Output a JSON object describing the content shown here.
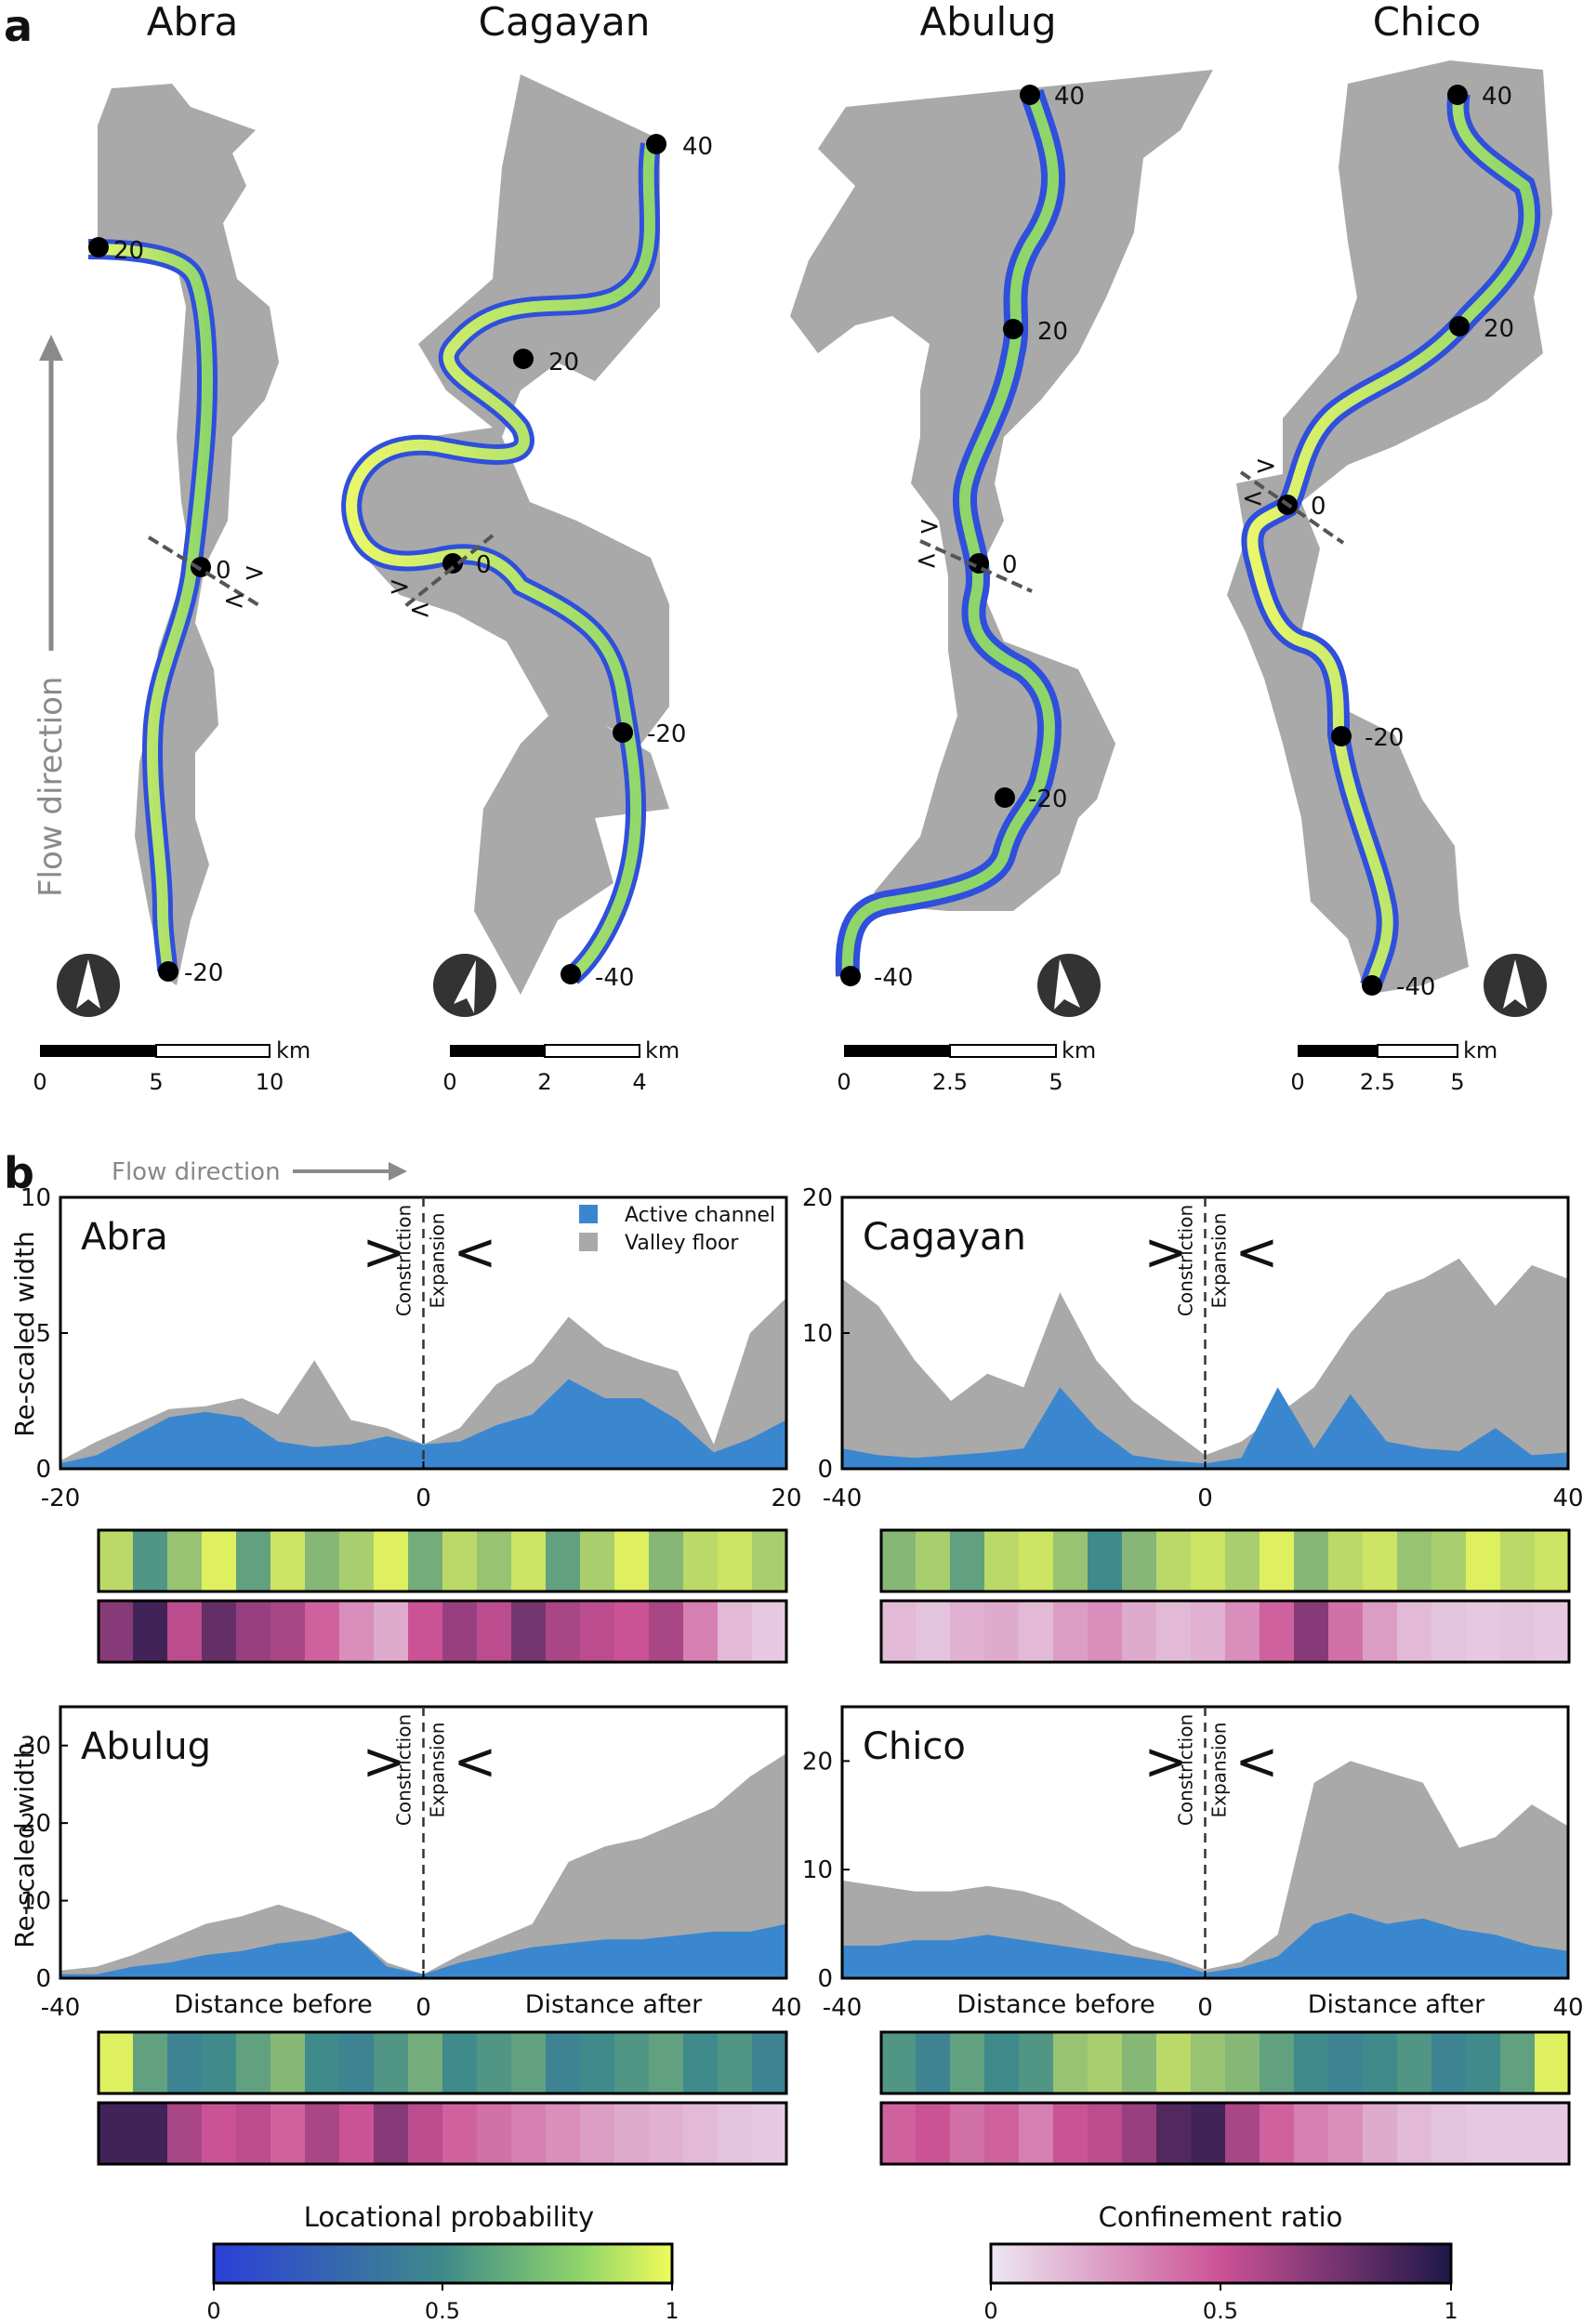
{
  "panel_labels": {
    "a": "a",
    "b": "b"
  },
  "panel_a": {
    "flow_direction_label": "Flow direction",
    "maps": [
      {
        "name": "Abra",
        "markers": [
          "20",
          "0",
          "-20"
        ],
        "scale_ticks": [
          "0",
          "5",
          "10"
        ],
        "scale_unit": "km"
      },
      {
        "name": "Cagayan",
        "markers": [
          "40",
          "20",
          "0",
          "-20",
          "-40"
        ],
        "scale_ticks": [
          "0",
          "2",
          "4"
        ],
        "scale_unit": "km"
      },
      {
        "name": "Abulug",
        "markers": [
          "40",
          "20",
          "0",
          "-20",
          "-40"
        ],
        "scale_ticks": [
          "0",
          "2.5",
          "5"
        ],
        "scale_unit": "km"
      },
      {
        "name": "Chico",
        "markers": [
          "40",
          "20",
          "0",
          "-20",
          "-40"
        ],
        "scale_ticks": [
          "0",
          "2.5",
          "5"
        ],
        "scale_unit": "km"
      }
    ]
  },
  "panel_b": {
    "flow_direction_label": "Flow direction",
    "legend": {
      "active": "Active channel",
      "valley": "Valley floor"
    },
    "constriction_label": "Constriction",
    "expansion_label": "Expansion",
    "constriction_symbol": ">",
    "expansion_symbol": "<",
    "ylabel": "Re-scaled width",
    "xlabel_before": "Distance before",
    "xlabel_after": "Distance after"
  },
  "colorbars": {
    "locational": {
      "title": "Locational probability",
      "ticks": [
        "0",
        "0.5",
        "1"
      ]
    },
    "confinement": {
      "title": "Confinement ratio",
      "ticks": [
        "0",
        "0.5",
        "1"
      ]
    }
  },
  "colors": {
    "active": "#3a87d0",
    "valley": "#a9a9a9",
    "loc_low": "#2b3fd8",
    "loc_mid": "#3f8a8a",
    "loc_high": "#f0fb5a",
    "conf_low": "#ece7f2",
    "conf_mid": "#cc5296",
    "conf_high": "#1e1748"
  },
  "chart_data": [
    {
      "type": "area",
      "title": "Abra",
      "xlabel": "",
      "ylabel": "Re-scaled width",
      "xlim": [
        -20,
        20
      ],
      "ylim": [
        0,
        10
      ],
      "xticks": [
        "-20",
        "0",
        "20"
      ],
      "yticks": [
        "0",
        "5",
        "10"
      ],
      "x": [
        -20,
        -18,
        -16,
        -14,
        -12,
        -10,
        -8,
        -6,
        -4,
        -2,
        0,
        2,
        4,
        6,
        8,
        10,
        12,
        14,
        16,
        18,
        20
      ],
      "series": [
        {
          "name": "Valley floor",
          "values": [
            0.3,
            1.0,
            1.6,
            2.2,
            2.3,
            2.6,
            2.0,
            4.0,
            1.8,
            1.5,
            0.9,
            1.5,
            3.1,
            3.9,
            5.6,
            4.5,
            4.0,
            3.6,
            0.9,
            5.0,
            6.3
          ]
        },
        {
          "name": "Active channel",
          "values": [
            0.2,
            0.5,
            1.2,
            1.9,
            2.1,
            1.9,
            1.0,
            0.8,
            0.9,
            1.2,
            0.9,
            1.0,
            1.6,
            2.0,
            3.3,
            2.6,
            2.6,
            1.8,
            0.6,
            1.1,
            1.8
          ]
        }
      ],
      "strip_locational": [
        0.85,
        0.55,
        0.75,
        0.95,
        0.6,
        0.9,
        0.7,
        0.8,
        0.95,
        0.65,
        0.85,
        0.75,
        0.9,
        0.6,
        0.8,
        0.95,
        0.7,
        0.85,
        0.9,
        0.8
      ],
      "strip_confinement": [
        0.7,
        0.9,
        0.55,
        0.8,
        0.65,
        0.6,
        0.45,
        0.3,
        0.2,
        0.5,
        0.65,
        0.55,
        0.75,
        0.6,
        0.55,
        0.5,
        0.6,
        0.35,
        0.15,
        0.1
      ]
    },
    {
      "type": "area",
      "title": "Cagayan",
      "xlabel": "",
      "ylabel": "",
      "xlim": [
        -40,
        40
      ],
      "ylim": [
        0,
        20
      ],
      "xticks": [
        "-40",
        "0",
        "40"
      ],
      "yticks": [
        "0",
        "10",
        "20"
      ],
      "x": [
        -40,
        -36,
        -32,
        -28,
        -24,
        -20,
        -16,
        -12,
        -8,
        -4,
        0,
        4,
        8,
        12,
        16,
        20,
        24,
        28,
        32,
        36,
        40
      ],
      "series": [
        {
          "name": "Valley floor",
          "values": [
            14,
            12,
            8,
            5,
            7,
            6,
            13,
            8,
            5,
            3,
            1,
            2,
            4,
            6,
            10,
            13,
            14,
            15.5,
            12,
            15,
            14
          ]
        },
        {
          "name": "Active channel",
          "values": [
            1.5,
            1.0,
            0.8,
            1.0,
            1.2,
            1.5,
            6.0,
            3.0,
            1.0,
            0.6,
            0.4,
            0.8,
            6.0,
            1.5,
            5.5,
            2.0,
            1.5,
            1.3,
            3.0,
            1.0,
            1.2
          ]
        }
      ],
      "strip_locational": [
        0.7,
        0.8,
        0.6,
        0.85,
        0.9,
        0.75,
        0.5,
        0.7,
        0.85,
        0.9,
        0.8,
        0.95,
        0.7,
        0.85,
        0.9,
        0.75,
        0.8,
        0.95,
        0.85,
        0.9
      ],
      "strip_confinement": [
        0.15,
        0.12,
        0.18,
        0.2,
        0.15,
        0.25,
        0.3,
        0.2,
        0.15,
        0.18,
        0.3,
        0.45,
        0.7,
        0.4,
        0.25,
        0.15,
        0.12,
        0.1,
        0.12,
        0.1
      ]
    },
    {
      "type": "area",
      "title": "Abulug",
      "xlabel": "Distance before / Distance after",
      "ylabel": "Re-scaled width",
      "xlim": [
        -40,
        40
      ],
      "ylim": [
        0,
        35
      ],
      "xticks": [
        "-40",
        "0",
        "40"
      ],
      "yticks": [
        "0",
        "10",
        "20",
        "30"
      ],
      "x": [
        -40,
        -36,
        -32,
        -28,
        -24,
        -20,
        -16,
        -12,
        -8,
        -4,
        0,
        4,
        8,
        12,
        16,
        20,
        24,
        28,
        32,
        36,
        40
      ],
      "series": [
        {
          "name": "Valley floor",
          "values": [
            1.0,
            1.5,
            3.0,
            5.0,
            7.0,
            8.0,
            9.5,
            8.0,
            6.0,
            2.0,
            0.5,
            3.0,
            5.0,
            7.0,
            15.0,
            17.0,
            18.0,
            20.0,
            22.0,
            26.0,
            29.0
          ]
        },
        {
          "name": "Active channel",
          "values": [
            0.5,
            0.5,
            1.5,
            2.0,
            3.0,
            3.5,
            4.5,
            5.0,
            6.0,
            1.5,
            0.5,
            2.0,
            3.0,
            4.0,
            4.5,
            5.0,
            5.0,
            5.5,
            6.0,
            6.0,
            7.0
          ]
        }
      ],
      "strip_locational": [
        0.95,
        0.6,
        0.45,
        0.5,
        0.6,
        0.7,
        0.5,
        0.45,
        0.55,
        0.65,
        0.5,
        0.55,
        0.6,
        0.45,
        0.5,
        0.55,
        0.6,
        0.5,
        0.55,
        0.45
      ],
      "strip_confinement": [
        0.9,
        0.9,
        0.6,
        0.5,
        0.55,
        0.45,
        0.6,
        0.5,
        0.7,
        0.55,
        0.45,
        0.4,
        0.35,
        0.3,
        0.25,
        0.2,
        0.18,
        0.15,
        0.12,
        0.1
      ]
    },
    {
      "type": "area",
      "title": "Chico",
      "xlabel": "Distance before / Distance after",
      "ylabel": "",
      "xlim": [
        -40,
        40
      ],
      "ylim": [
        0,
        25
      ],
      "xticks": [
        "-40",
        "0",
        "40"
      ],
      "yticks": [
        "0",
        "10",
        "20"
      ],
      "x": [
        -40,
        -36,
        -32,
        -28,
        -24,
        -20,
        -16,
        -12,
        -8,
        -4,
        0,
        4,
        8,
        12,
        16,
        20,
        24,
        28,
        32,
        36,
        40
      ],
      "series": [
        {
          "name": "Valley floor",
          "values": [
            9.0,
            8.5,
            8.0,
            8.0,
            8.5,
            8.0,
            7.0,
            5.0,
            3.0,
            2.0,
            0.8,
            1.5,
            4.0,
            18.0,
            20.0,
            19.0,
            18.0,
            12.0,
            13.0,
            16.0,
            14.0
          ]
        },
        {
          "name": "Active channel",
          "values": [
            3.0,
            3.0,
            3.5,
            3.5,
            4.0,
            3.5,
            3.0,
            2.5,
            2.0,
            1.5,
            0.5,
            1.0,
            2.0,
            5.0,
            6.0,
            5.0,
            5.5,
            4.5,
            4.0,
            3.0,
            2.5
          ]
        }
      ],
      "strip_locational": [
        0.55,
        0.45,
        0.6,
        0.5,
        0.55,
        0.75,
        0.8,
        0.7,
        0.85,
        0.75,
        0.7,
        0.6,
        0.5,
        0.45,
        0.5,
        0.55,
        0.45,
        0.5,
        0.6,
        0.95
      ],
      "strip_confinement": [
        0.45,
        0.5,
        0.4,
        0.45,
        0.35,
        0.5,
        0.55,
        0.65,
        0.85,
        0.9,
        0.6,
        0.45,
        0.35,
        0.3,
        0.2,
        0.15,
        0.12,
        0.1,
        0.1,
        0.1
      ]
    }
  ]
}
